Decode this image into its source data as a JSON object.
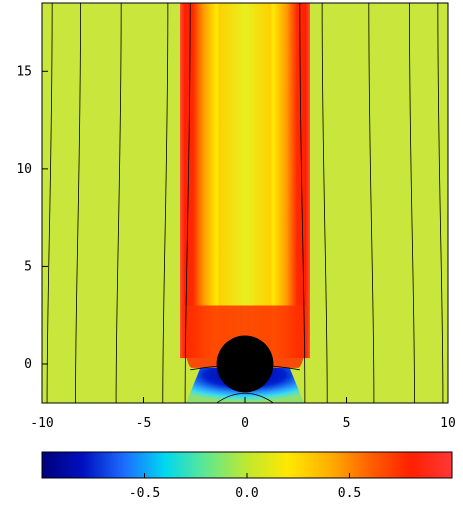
{
  "chart_data": {
    "type": "heatmap",
    "title": "",
    "xlabel": "",
    "ylabel": "",
    "xlim": [
      -10,
      10
    ],
    "ylim": [
      -2,
      18.5
    ],
    "x_ticks": [
      -10,
      -5,
      0,
      5,
      10
    ],
    "y_ticks": [
      0,
      5,
      10,
      15
    ],
    "x_tick_labels": [
      "-10",
      "-5",
      "0",
      "5",
      "10"
    ],
    "y_tick_labels": [
      "0",
      "5",
      "10",
      "15"
    ],
    "colorbar": {
      "range": [
        -1,
        1
      ],
      "ticks": [
        -0.5,
        0.0,
        0.5
      ],
      "tick_labels": [
        "-0.5",
        "0.0",
        "0.5"
      ],
      "placement": "bottom"
    },
    "obstacle": {
      "shape": "circle",
      "center": [
        0,
        0
      ],
      "radius": 1.4,
      "color": "#000000"
    },
    "field_description_points": [
      {
        "x": 0,
        "y": 10,
        "value": 0.05
      },
      {
        "x": 2.5,
        "y": 10,
        "value": 0.9
      },
      {
        "x": -2.5,
        "y": 10,
        "value": 0.9
      },
      {
        "x": 6,
        "y": 10,
        "value": 0.02
      },
      {
        "x": 0,
        "y": -1.5,
        "value": -0.95
      }
    ],
    "contour_lines_x": [
      -9.5,
      -8.1,
      -6.1,
      -3.8,
      -2.7,
      2.7,
      3.8,
      6.1,
      8.1,
      9.5
    ]
  }
}
